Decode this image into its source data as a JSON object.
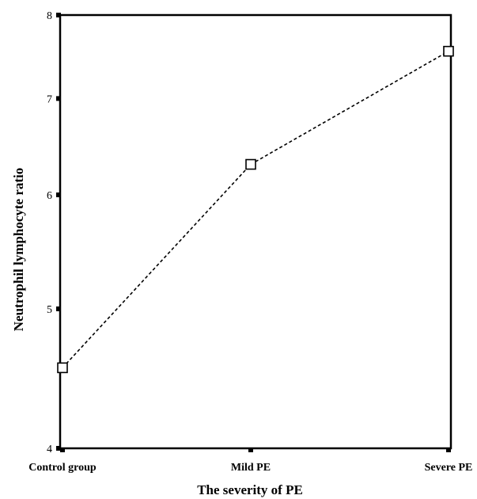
{
  "chart_data": {
    "type": "line",
    "title": "",
    "xlabel": "The severity of PE",
    "ylabel": "Neutrophil lymphocyte ratio",
    "y_scale": "log",
    "ylim": [
      4,
      8
    ],
    "yticks": [
      4,
      5,
      6,
      7,
      8
    ],
    "categories": [
      "Control group",
      "Mild PE",
      "Severe PE"
    ],
    "series": [
      {
        "values": [
          4.55,
          6.3,
          7.55
        ]
      }
    ],
    "grid": false,
    "legend": "none",
    "marker": "open-square",
    "line_style": "dashed",
    "colors": {
      "line": "#000000",
      "axis": "#000000",
      "background": "#ffffff"
    }
  }
}
